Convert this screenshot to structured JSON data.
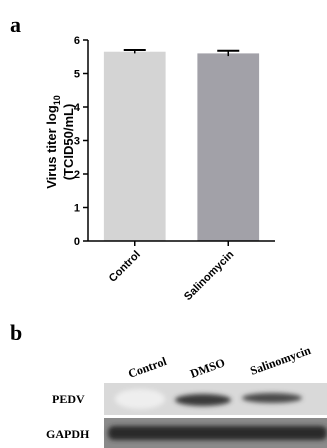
{
  "panel_a": "a",
  "chart_data": {
    "type": "bar",
    "ylabel": {
      "line1": "Virus titer log",
      "line1_sub": "10",
      "line2": "(TCID50/mL)"
    },
    "categories": [
      "Control",
      "Salinomycin"
    ],
    "values": [
      5.65,
      5.6
    ],
    "errors": [
      0.05,
      0.08
    ],
    "colors": [
      "#d4d4d4",
      "#a2a1a8"
    ],
    "ylim": [
      0,
      6
    ],
    "yticks": [
      0,
      1,
      2,
      3,
      4,
      5,
      6
    ]
  },
  "panel_b": "b",
  "blot": {
    "lanes": [
      "Control",
      "DMSO",
      "Salinomycin"
    ],
    "rows": [
      "PEDV",
      "GAPDH"
    ]
  }
}
